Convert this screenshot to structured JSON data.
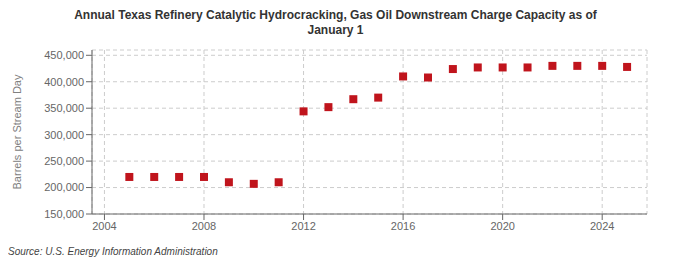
{
  "chart_data": {
    "type": "scatter",
    "title": "Annual Texas Refinery Catalytic Hydrocracking, Gas Oil Downstream Charge Capacity as of\nJanuary 1",
    "ylabel": "Barrels per Stream Day",
    "source": "Source: U.S. Energy Information Administration",
    "x": [
      2005,
      2006,
      2007,
      2008,
      2009,
      2010,
      2011,
      2012,
      2013,
      2014,
      2015,
      2016,
      2017,
      2018,
      2019,
      2020,
      2021,
      2022,
      2023,
      2024,
      2025
    ],
    "values": [
      220000,
      220000,
      220000,
      220000,
      210000,
      207000,
      210000,
      344000,
      352000,
      367000,
      370000,
      410000,
      408000,
      424000,
      427000,
      427000,
      427000,
      430000,
      430000,
      430000,
      428000
    ],
    "color": "#c0141c",
    "marker": "square",
    "grid": true,
    "xlim": [
      2003.5,
      2025.8
    ],
    "xticks": [
      2004,
      2008,
      2012,
      2016,
      2020,
      2024
    ],
    "ylim": [
      150000,
      460000
    ],
    "yticks": [
      {
        "value": 150000,
        "label": "150,000"
      },
      {
        "value": 200000,
        "label": "200,000"
      },
      {
        "value": 250000,
        "label": "250,000"
      },
      {
        "value": 300000,
        "label": "300,000"
      },
      {
        "value": 350000,
        "label": "350,000"
      },
      {
        "value": 400000,
        "label": "400,000"
      },
      {
        "value": 450000,
        "label": "450,000"
      }
    ]
  }
}
